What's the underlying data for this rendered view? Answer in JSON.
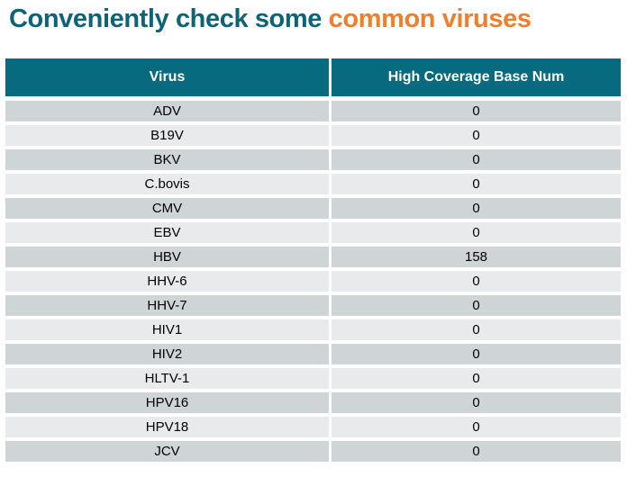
{
  "title": {
    "teal_text": "Conveniently check some",
    "orange_text": "common viruses"
  },
  "colors": {
    "title_teal": "#0e6477",
    "title_orange": "#ef7e2d",
    "header_bg": "#076a7e",
    "header_text": "#ffffff",
    "row_dark": "#cfd4d7",
    "row_light": "#e8eaeb",
    "row_text": "#000000"
  },
  "table": {
    "columns": [
      "Virus",
      "High Coverage Base Num"
    ],
    "rows": [
      {
        "virus": "ADV",
        "value": "0"
      },
      {
        "virus": "B19V",
        "value": "0"
      },
      {
        "virus": "BKV",
        "value": "0"
      },
      {
        "virus": "C.bovis",
        "value": "0"
      },
      {
        "virus": "CMV",
        "value": "0"
      },
      {
        "virus": "EBV",
        "value": "0"
      },
      {
        "virus": "HBV",
        "value": "158"
      },
      {
        "virus": "HHV-6",
        "value": "0"
      },
      {
        "virus": "HHV-7",
        "value": "0"
      },
      {
        "virus": "HIV1",
        "value": "0"
      },
      {
        "virus": "HIV2",
        "value": "0"
      },
      {
        "virus": "HLTV-1",
        "value": "0"
      },
      {
        "virus": "HPV16",
        "value": "0"
      },
      {
        "virus": "HPV18",
        "value": "0"
      },
      {
        "virus": "JCV",
        "value": "0"
      }
    ]
  }
}
